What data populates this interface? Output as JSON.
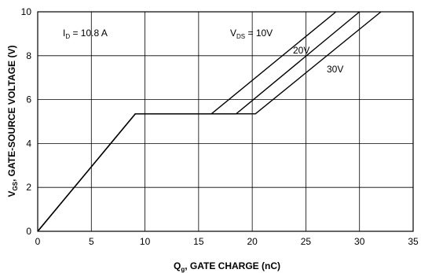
{
  "chart_data": {
    "type": "line",
    "title": "",
    "xlabel_main": "Q",
    "xlabel_sub": "g",
    "xlabel_rest": ", GATE CHARGE (nC)",
    "ylabel_main": "V",
    "ylabel_sub": "GS",
    "ylabel_rest": ", GATE-SOURCE VOLTAGE (V)",
    "xlim": [
      0,
      35
    ],
    "ylim": [
      0,
      10
    ],
    "xticks": [
      0,
      5,
      10,
      15,
      20,
      25,
      30,
      35
    ],
    "yticks": [
      0,
      2,
      4,
      6,
      8,
      10
    ],
    "grid": true,
    "annotations": {
      "id_main": "I",
      "id_sub": "D",
      "id_rest": " = 10.8 A",
      "vds_main": "V",
      "vds_sub": "DS",
      "vds_rest": " = 10V",
      "label_20v": "20V",
      "label_30v": "30V"
    },
    "series": [
      {
        "x": [
          0,
          9.1,
          16.2,
          27.8
        ],
        "y": [
          0,
          5.35,
          5.35,
          10
        ]
      },
      {
        "x": [
          0,
          9.1,
          18.5,
          30.0
        ],
        "y": [
          0,
          5.35,
          5.35,
          10
        ]
      },
      {
        "x": [
          0,
          9.1,
          20.3,
          32.0
        ],
        "y": [
          0,
          5.35,
          5.35,
          10
        ]
      }
    ]
  }
}
